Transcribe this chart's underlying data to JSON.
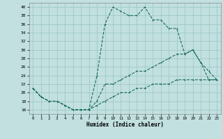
{
  "xlabel": "Humidex (Indice chaleur)",
  "ylabel": "",
  "xlim": [
    -0.5,
    23.5
  ],
  "ylim": [
    15,
    41
  ],
  "yticks": [
    16,
    18,
    20,
    22,
    24,
    26,
    28,
    30,
    32,
    34,
    36,
    38,
    40
  ],
  "xticks": [
    0,
    1,
    2,
    3,
    4,
    5,
    6,
    7,
    8,
    9,
    10,
    11,
    12,
    13,
    14,
    15,
    16,
    17,
    18,
    19,
    20,
    21,
    22,
    23
  ],
  "background_color": "#c2e0e0",
  "grid_color": "#9ec8c8",
  "line_color": "#1a6b5a",
  "line1_y": [
    21,
    19,
    18,
    18,
    17,
    16,
    16,
    16,
    24,
    36,
    40,
    39,
    38,
    38,
    40,
    37,
    37,
    35,
    35,
    29,
    30,
    27,
    23,
    23
  ],
  "line2_y": [
    21,
    19,
    18,
    18,
    17,
    16,
    16,
    16,
    18,
    22,
    22,
    23,
    24,
    25,
    25,
    26,
    27,
    28,
    29,
    29,
    30,
    27,
    25,
    23
  ],
  "line3_y": [
    21,
    19,
    18,
    18,
    17,
    16,
    16,
    16,
    17,
    18,
    19,
    20,
    20,
    21,
    21,
    22,
    22,
    22,
    23,
    23,
    23,
    23,
    23,
    23
  ]
}
